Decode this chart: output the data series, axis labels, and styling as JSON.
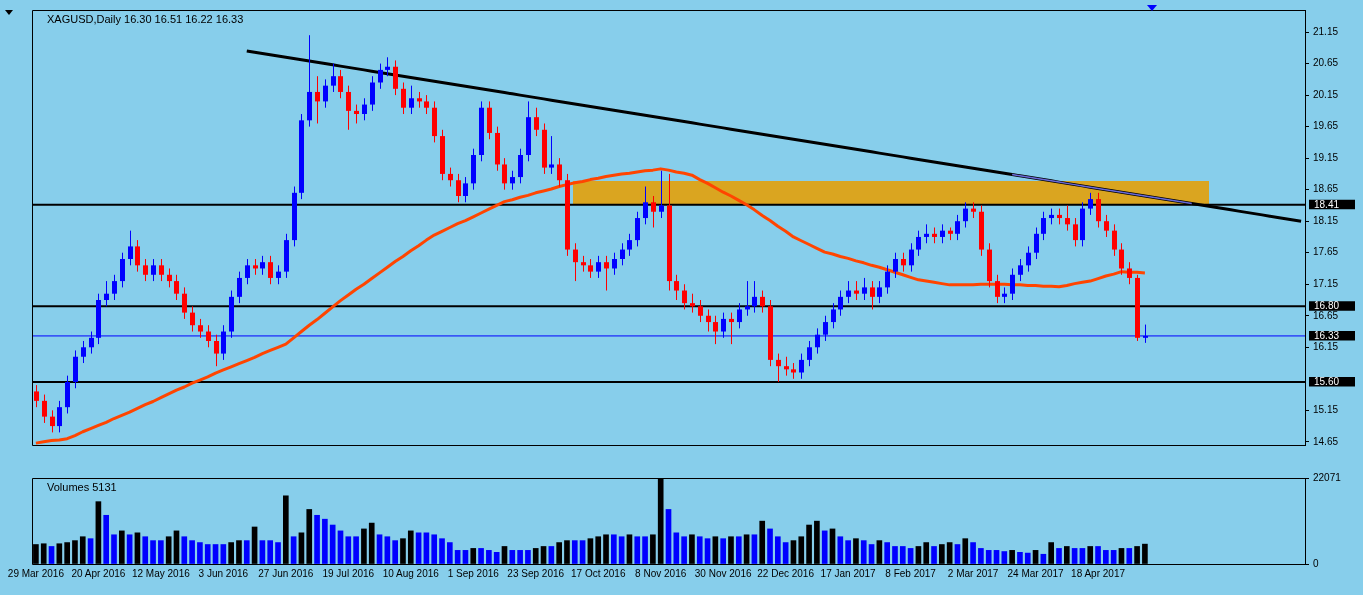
{
  "chart_data": [
    {
      "type": "candlestick",
      "title": "XAGUSD,Daily 16.30 16.51 16.22 16.33",
      "tick_labels": "y",
      "categories": [
        null,
        null,
        null,
        null,
        null,
        null,
        null,
        null,
        null,
        null,
        null,
        null,
        null,
        null,
        null,
        null,
        null,
        null,
        null,
        null,
        null,
        null,
        null,
        null,
        null,
        null,
        null,
        null,
        null,
        null,
        null,
        null,
        null,
        null,
        null,
        null,
        null,
        null,
        null,
        null,
        null,
        null,
        null,
        null,
        null,
        null,
        null,
        null,
        null,
        null,
        null,
        null,
        null,
        null,
        null,
        null,
        null,
        null,
        null,
        null,
        null,
        null,
        null,
        null,
        null,
        null,
        null,
        null,
        null,
        null,
        null,
        null,
        null,
        null,
        null,
        null,
        null,
        null,
        null,
        null,
        null,
        null,
        null,
        null,
        null,
        null,
        null,
        null,
        null,
        null,
        null,
        null,
        null,
        null,
        null,
        null,
        null,
        null,
        null,
        null,
        null,
        null,
        null,
        null,
        null,
        null,
        null,
        null,
        null,
        null,
        null,
        null,
        null,
        null,
        null,
        null,
        null,
        null,
        null,
        null,
        null,
        null,
        null,
        null,
        null,
        null,
        null,
        null,
        null,
        null,
        null,
        null,
        null,
        null,
        null,
        null,
        null,
        null,
        null,
        null,
        null,
        null,
        null,
        null,
        null,
        null,
        null,
        null,
        null,
        null,
        null,
        null,
        null,
        null,
        null,
        null,
        null,
        null,
        null,
        null,
        null,
        null,
        null
      ],
      "ylim": [
        14.6,
        21.5
      ],
      "yticks": [
        21.15,
        20.65,
        20.15,
        19.65,
        19.15,
        18.65,
        18.15,
        17.65,
        17.15,
        16.65,
        16.15,
        15.15,
        14.65
      ],
      "ohlc": [
        [
          15.45,
          15.55,
          15.2,
          15.3
        ],
        [
          15.3,
          15.4,
          14.95,
          15.05
        ],
        [
          15.05,
          15.15,
          14.8,
          14.9
        ],
        [
          14.9,
          15.3,
          14.8,
          15.2
        ],
        [
          15.2,
          15.7,
          15.1,
          15.6
        ],
        [
          15.6,
          16.1,
          15.5,
          16.0
        ],
        [
          16.0,
          16.25,
          15.9,
          16.15
        ],
        [
          16.15,
          16.4,
          16.05,
          16.3
        ],
        [
          16.3,
          17.0,
          16.2,
          16.9
        ],
        [
          16.9,
          17.2,
          16.8,
          17.0
        ],
        [
          17.0,
          17.3,
          16.9,
          17.2
        ],
        [
          17.2,
          17.65,
          17.1,
          17.55
        ],
        [
          17.55,
          18.0,
          17.45,
          17.75
        ],
        [
          17.75,
          17.85,
          17.35,
          17.45
        ],
        [
          17.45,
          17.55,
          17.2,
          17.3
        ],
        [
          17.3,
          17.55,
          17.2,
          17.45
        ],
        [
          17.45,
          17.55,
          17.2,
          17.3
        ],
        [
          17.3,
          17.4,
          17.1,
          17.2
        ],
        [
          17.2,
          17.3,
          16.9,
          17.0
        ],
        [
          17.0,
          17.1,
          16.6,
          16.7
        ],
        [
          16.7,
          16.8,
          16.4,
          16.5
        ],
        [
          16.5,
          16.6,
          16.3,
          16.4
        ],
        [
          16.4,
          16.5,
          16.15,
          16.25
        ],
        [
          16.25,
          16.35,
          15.85,
          16.05
        ],
        [
          16.05,
          16.5,
          15.95,
          16.4
        ],
        [
          16.4,
          17.05,
          16.3,
          16.95
        ],
        [
          16.95,
          17.35,
          16.85,
          17.25
        ],
        [
          17.25,
          17.55,
          17.15,
          17.45
        ],
        [
          17.45,
          17.55,
          17.3,
          17.4
        ],
        [
          17.4,
          17.6,
          17.3,
          17.5
        ],
        [
          17.5,
          17.6,
          17.15,
          17.25
        ],
        [
          17.25,
          17.45,
          17.15,
          17.35
        ],
        [
          17.35,
          17.95,
          17.25,
          17.85
        ],
        [
          17.85,
          18.7,
          17.75,
          18.6
        ],
        [
          18.6,
          19.85,
          18.5,
          19.75
        ],
        [
          19.75,
          21.1,
          19.65,
          20.2
        ],
        [
          20.2,
          20.45,
          19.7,
          20.05
        ],
        [
          20.05,
          20.4,
          19.95,
          20.3
        ],
        [
          20.3,
          20.65,
          20.2,
          20.45
        ],
        [
          20.45,
          20.55,
          20.1,
          20.2
        ],
        [
          20.2,
          20.3,
          19.6,
          19.9
        ],
        [
          19.9,
          20.0,
          19.7,
          19.85
        ],
        [
          19.85,
          20.1,
          19.75,
          20.0
        ],
        [
          20.0,
          20.45,
          19.9,
          20.35
        ],
        [
          20.35,
          20.65,
          20.25,
          20.55
        ],
        [
          20.55,
          20.75,
          20.45,
          20.6
        ],
        [
          20.6,
          20.7,
          20.15,
          20.25
        ],
        [
          20.25,
          20.35,
          19.85,
          19.95
        ],
        [
          19.95,
          20.3,
          19.85,
          20.1
        ],
        [
          20.1,
          20.2,
          19.95,
          20.05
        ],
        [
          20.05,
          20.15,
          19.85,
          19.95
        ],
        [
          19.95,
          20.05,
          19.4,
          19.5
        ],
        [
          19.5,
          19.6,
          18.8,
          18.9
        ],
        [
          18.9,
          19.0,
          18.7,
          18.8
        ],
        [
          18.8,
          18.9,
          18.45,
          18.55
        ],
        [
          18.55,
          18.85,
          18.45,
          18.75
        ],
        [
          18.75,
          19.3,
          18.65,
          19.2
        ],
        [
          19.2,
          20.05,
          19.1,
          19.95
        ],
        [
          19.95,
          20.05,
          19.45,
          19.55
        ],
        [
          19.55,
          19.65,
          18.95,
          19.05
        ],
        [
          19.05,
          19.15,
          18.65,
          18.75
        ],
        [
          18.75,
          18.95,
          18.65,
          18.85
        ],
        [
          18.85,
          19.3,
          18.75,
          19.2
        ],
        [
          19.2,
          20.05,
          19.1,
          19.8
        ],
        [
          19.8,
          19.95,
          19.5,
          19.6
        ],
        [
          19.6,
          19.7,
          18.9,
          19.0
        ],
        [
          19.0,
          19.5,
          18.9,
          19.05
        ],
        [
          19.05,
          19.15,
          18.7,
          18.8
        ],
        [
          18.8,
          18.9,
          17.6,
          17.7
        ],
        [
          17.7,
          17.8,
          17.2,
          17.5
        ],
        [
          17.5,
          17.6,
          17.35,
          17.45
        ],
        [
          17.45,
          17.55,
          17.25,
          17.35
        ],
        [
          17.35,
          17.6,
          17.25,
          17.5
        ],
        [
          17.5,
          17.6,
          17.05,
          17.4
        ],
        [
          17.4,
          17.65,
          17.3,
          17.55
        ],
        [
          17.55,
          17.8,
          17.45,
          17.7
        ],
        [
          17.7,
          17.95,
          17.6,
          17.85
        ],
        [
          17.85,
          18.3,
          17.75,
          18.2
        ],
        [
          18.2,
          18.7,
          18.1,
          18.45
        ],
        [
          18.45,
          18.55,
          18.05,
          18.3
        ],
        [
          18.3,
          18.95,
          18.2,
          18.4
        ],
        [
          18.4,
          18.9,
          17.05,
          17.2
        ],
        [
          17.2,
          17.3,
          16.9,
          17.05
        ],
        [
          17.05,
          17.15,
          16.75,
          16.85
        ],
        [
          16.85,
          17.0,
          16.7,
          16.8
        ],
        [
          16.8,
          16.9,
          16.55,
          16.65
        ],
        [
          16.65,
          16.75,
          16.4,
          16.55
        ],
        [
          16.55,
          16.65,
          16.2,
          16.4
        ],
        [
          16.4,
          16.7,
          16.3,
          16.6
        ],
        [
          16.6,
          16.7,
          16.2,
          16.55
        ],
        [
          16.55,
          16.85,
          16.45,
          16.75
        ],
        [
          16.75,
          17.2,
          16.65,
          16.8
        ],
        [
          16.8,
          17.2,
          16.7,
          16.95
        ],
        [
          16.95,
          17.05,
          16.7,
          16.8
        ],
        [
          16.8,
          16.9,
          15.85,
          15.95
        ],
        [
          15.95,
          16.05,
          15.6,
          15.85
        ],
        [
          15.85,
          16.0,
          15.7,
          15.8
        ],
        [
          15.8,
          15.9,
          15.65,
          15.75
        ],
        [
          15.75,
          16.05,
          15.65,
          15.95
        ],
        [
          15.95,
          16.25,
          15.85,
          16.15
        ],
        [
          16.15,
          16.45,
          16.05,
          16.35
        ],
        [
          16.35,
          16.65,
          16.25,
          16.55
        ],
        [
          16.55,
          16.85,
          16.45,
          16.75
        ],
        [
          16.75,
          17.05,
          16.65,
          16.95
        ],
        [
          16.95,
          17.2,
          16.85,
          17.05
        ],
        [
          17.05,
          17.2,
          16.9,
          17.0
        ],
        [
          17.0,
          17.25,
          16.9,
          17.1
        ],
        [
          17.1,
          17.2,
          16.75,
          16.95
        ],
        [
          16.95,
          17.2,
          16.85,
          17.1
        ],
        [
          17.1,
          17.45,
          17.0,
          17.35
        ],
        [
          17.35,
          17.65,
          17.25,
          17.55
        ],
        [
          17.55,
          17.65,
          17.35,
          17.45
        ],
        [
          17.45,
          17.8,
          17.35,
          17.7
        ],
        [
          17.7,
          18.0,
          17.6,
          17.9
        ],
        [
          17.9,
          18.1,
          17.8,
          17.95
        ],
        [
          17.95,
          18.05,
          17.8,
          17.9
        ],
        [
          17.9,
          18.1,
          17.8,
          18.0
        ],
        [
          18.0,
          18.05,
          17.85,
          17.95
        ],
        [
          17.95,
          18.25,
          17.85,
          18.15
        ],
        [
          18.15,
          18.45,
          18.05,
          18.35
        ],
        [
          18.35,
          18.45,
          18.2,
          18.3
        ],
        [
          18.3,
          18.4,
          17.6,
          17.7
        ],
        [
          17.7,
          17.8,
          17.1,
          17.2
        ],
        [
          17.2,
          17.3,
          16.85,
          16.95
        ],
        [
          16.95,
          17.1,
          16.85,
          17.0
        ],
        [
          17.0,
          17.4,
          16.9,
          17.3
        ],
        [
          17.3,
          17.55,
          17.2,
          17.45
        ],
        [
          17.45,
          17.75,
          17.35,
          17.65
        ],
        [
          17.65,
          18.05,
          17.55,
          17.95
        ],
        [
          17.95,
          18.3,
          17.85,
          18.2
        ],
        [
          18.2,
          18.35,
          18.1,
          18.25
        ],
        [
          18.25,
          18.35,
          18.1,
          18.2
        ],
        [
          18.2,
          18.4,
          18.0,
          18.1
        ],
        [
          18.1,
          18.2,
          17.75,
          17.85
        ],
        [
          17.85,
          18.45,
          17.75,
          18.35
        ],
        [
          18.35,
          18.6,
          18.25,
          18.5
        ],
        [
          18.5,
          18.6,
          18.05,
          18.15
        ],
        [
          18.15,
          18.25,
          17.9,
          18.0
        ],
        [
          18.0,
          18.1,
          17.6,
          17.7
        ],
        [
          17.7,
          17.8,
          17.3,
          17.4
        ],
        [
          17.4,
          17.5,
          17.15,
          17.25
        ],
        [
          17.25,
          17.3,
          16.25,
          16.3
        ],
        [
          16.3,
          16.51,
          16.22,
          16.33
        ],
        null,
        null,
        null,
        null,
        null,
        null,
        null,
        null,
        null,
        null,
        null,
        null,
        null,
        null,
        null,
        null,
        null,
        null,
        null,
        null
      ],
      "colors": [
        "#ff0000",
        "#ff0000",
        "#ff0000",
        "#0000ff",
        "#0000ff",
        "#0000ff",
        "#0000ff",
        "#0000ff",
        "#0000ff",
        "#0000ff",
        "#0000ff",
        "#0000ff",
        "#0000ff",
        "#ff0000",
        "#ff0000",
        "#0000ff",
        "#ff0000",
        "#ff0000",
        "#ff0000",
        "#ff0000",
        "#ff0000",
        "#ff0000",
        "#ff0000",
        "#ff0000",
        "#0000ff",
        "#0000ff",
        "#0000ff",
        "#0000ff",
        "#ff0000",
        "#0000ff",
        "#ff0000",
        "#0000ff",
        "#0000ff",
        "#0000ff",
        "#0000ff",
        "#0000ff",
        "#ff0000",
        "#0000ff",
        "#0000ff",
        "#ff0000",
        "#ff0000",
        "#ff0000",
        "#0000ff",
        "#0000ff",
        "#0000ff",
        "#0000ff",
        "#ff0000",
        "#ff0000",
        "#0000ff",
        "#ff0000",
        "#ff0000",
        "#ff0000",
        "#ff0000",
        "#ff0000",
        "#ff0000",
        "#0000ff",
        "#0000ff",
        "#0000ff",
        "#ff0000",
        "#ff0000",
        "#ff0000",
        "#0000ff",
        "#0000ff",
        "#0000ff",
        "#ff0000",
        "#ff0000",
        "#0000ff",
        "#ff0000",
        "#ff0000",
        "#ff0000",
        "#ff0000",
        "#ff0000",
        "#0000ff",
        "#ff0000",
        "#0000ff",
        "#0000ff",
        "#0000ff",
        "#0000ff",
        "#0000ff",
        "#ff0000",
        "#0000ff",
        "#ff0000",
        "#ff0000",
        "#ff0000",
        "#ff0000",
        "#ff0000",
        "#ff0000",
        "#ff0000",
        "#0000ff",
        "#ff0000",
        "#0000ff",
        "#0000ff",
        "#0000ff",
        "#ff0000",
        "#ff0000",
        "#ff0000",
        "#ff0000",
        "#ff0000",
        "#0000ff",
        "#0000ff",
        "#0000ff",
        "#0000ff",
        "#0000ff",
        "#0000ff",
        "#0000ff",
        "#ff0000",
        "#0000ff",
        "#ff0000",
        "#0000ff",
        "#0000ff",
        "#0000ff",
        "#ff0000",
        "#0000ff",
        "#0000ff",
        "#0000ff",
        "#ff0000",
        "#0000ff",
        "#ff0000",
        "#0000ff",
        "#0000ff",
        "#ff0000",
        "#ff0000",
        "#ff0000",
        "#ff0000",
        "#0000ff",
        "#0000ff",
        "#0000ff",
        "#0000ff",
        "#0000ff",
        "#0000ff",
        "#0000ff",
        "#ff0000",
        "#ff0000",
        "#ff0000",
        "#0000ff",
        "#0000ff",
        "#ff0000",
        "#ff0000",
        "#ff0000",
        "#ff0000",
        "#ff0000",
        "#ff0000",
        "#0000ff",
        null,
        null,
        null,
        null,
        null,
        null,
        null,
        null,
        null,
        null,
        null,
        null,
        null,
        null,
        null,
        null,
        null,
        null,
        null,
        null
      ],
      "series": [
        {
          "type": "line",
          "color": "#ff4500",
          "values": [
            14.63,
            14.65,
            14.67,
            14.68,
            14.7,
            14.75,
            14.81,
            14.86,
            14.91,
            14.96,
            15.02,
            15.07,
            15.12,
            15.18,
            15.24,
            15.29,
            15.35,
            15.41,
            15.47,
            15.52,
            15.58,
            15.63,
            15.68,
            15.74,
            15.79,
            15.84,
            15.89,
            15.94,
            15.99,
            16.05,
            16.1,
            16.15,
            16.2,
            16.3,
            16.4,
            16.5,
            16.59,
            16.69,
            16.79,
            16.89,
            16.98,
            17.07,
            17.15,
            17.24,
            17.33,
            17.42,
            17.51,
            17.59,
            17.68,
            17.76,
            17.85,
            17.93,
            17.99,
            18.05,
            18.11,
            18.16,
            18.22,
            18.28,
            18.34,
            18.4,
            18.46,
            18.49,
            18.53,
            18.56,
            18.6,
            18.63,
            18.66,
            18.7,
            18.73,
            18.76,
            18.78,
            18.81,
            18.83,
            18.86,
            18.88,
            18.9,
            18.91,
            18.93,
            18.95,
            18.96,
            18.98,
            18.96,
            18.93,
            18.91,
            18.88,
            18.81,
            18.75,
            18.68,
            18.61,
            18.55,
            18.48,
            18.41,
            18.33,
            18.24,
            18.16,
            18.07,
            17.99,
            17.9,
            17.84,
            17.78,
            17.72,
            17.66,
            17.63,
            17.59,
            17.56,
            17.52,
            17.49,
            17.45,
            17.42,
            17.38,
            17.34,
            17.3,
            17.26,
            17.22,
            17.2,
            17.18,
            17.16,
            17.14,
            17.14,
            17.14,
            17.14,
            17.15,
            17.15,
            17.15,
            17.15,
            17.14,
            17.14,
            17.13,
            17.13,
            17.12,
            17.12,
            17.11,
            17.13,
            17.16,
            17.18,
            17.2,
            17.24,
            17.28,
            17.31,
            17.35,
            17.34,
            17.34,
            17.33,
            null,
            null,
            null,
            null,
            null,
            null,
            null,
            null,
            null,
            null,
            null,
            null,
            null,
            null,
            null,
            null,
            null,
            null,
            null,
            null
          ]
        },
        {
          "type": "line",
          "color": "#000000",
          "values": [
            null,
            null,
            null,
            null,
            null,
            null,
            null,
            null,
            null,
            null,
            null,
            null,
            null,
            null,
            null,
            null,
            null,
            null,
            null,
            null,
            null,
            null,
            null,
            null,
            null,
            null,
            null,
            20.85,
            20.83,
            20.81,
            20.79,
            20.77,
            20.75,
            20.73,
            20.71,
            20.69,
            20.67,
            20.65,
            20.63,
            20.61,
            20.59,
            20.57,
            20.55,
            20.53,
            20.51,
            20.49,
            20.47,
            20.45,
            20.43,
            20.41,
            20.39,
            20.37,
            20.35,
            20.33,
            20.31,
            20.29,
            20.27,
            20.25,
            20.23,
            20.21,
            20.19,
            20.17,
            20.15,
            20.13,
            20.11,
            20.09,
            20.07,
            20.05,
            20.03,
            20.01,
            19.99,
            19.97,
            19.95,
            19.93,
            19.91,
            19.89,
            19.87,
            19.85,
            19.83,
            19.81,
            19.79,
            19.77,
            19.75,
            19.73,
            19.71,
            19.69,
            19.67,
            19.65,
            19.63,
            19.61,
            19.59,
            19.57,
            19.55,
            19.53,
            19.51,
            19.49,
            19.47,
            19.45,
            19.43,
            19.41,
            19.39,
            19.37,
            19.35,
            19.33,
            19.31,
            19.29,
            19.27,
            19.25,
            19.23,
            19.21,
            19.19,
            19.17,
            19.15,
            19.13,
            19.11,
            19.09,
            19.07,
            19.05,
            19.03,
            19.01,
            18.99,
            18.97,
            18.95,
            18.93,
            18.91,
            18.89,
            18.87,
            18.85,
            18.83,
            18.81,
            18.79,
            18.77,
            18.75,
            18.73,
            18.71,
            18.69,
            18.67,
            18.65,
            18.63,
            18.61,
            18.59,
            18.57,
            18.55,
            18.53,
            18.51,
            18.49,
            18.47,
            18.45,
            18.43,
            18.41,
            18.39,
            18.37,
            18.35,
            18.33,
            18.31,
            18.29,
            18.27,
            18.25,
            18.23,
            18.21,
            18.19,
            18.17,
            18.15
          ]
        },
        {
          "type": "line",
          "color": "#6a6ad8",
          "values": [
            null,
            null,
            null,
            null,
            null,
            null,
            null,
            null,
            null,
            null,
            null,
            null,
            null,
            null,
            null,
            null,
            null,
            null,
            null,
            null,
            null,
            null,
            null,
            null,
            null,
            null,
            null,
            null,
            null,
            null,
            null,
            null,
            null,
            null,
            null,
            null,
            null,
            null,
            null,
            null,
            null,
            null,
            null,
            null,
            null,
            null,
            null,
            null,
            null,
            null,
            null,
            null,
            null,
            null,
            null,
            null,
            null,
            null,
            null,
            null,
            null,
            null,
            null,
            null,
            null,
            null,
            null,
            null,
            null,
            null,
            null,
            null,
            null,
            null,
            null,
            null,
            null,
            null,
            null,
            null,
            null,
            null,
            null,
            null,
            null,
            null,
            null,
            null,
            null,
            null,
            null,
            null,
            null,
            null,
            null,
            null,
            null,
            null,
            null,
            null,
            null,
            null,
            null,
            null,
            null,
            null,
            null,
            null,
            null,
            null,
            null,
            null,
            null,
            null,
            null,
            null,
            null,
            null,
            null,
            null,
            null,
            null,
            null,
            null,
            null,
            18.89,
            18.87,
            18.85,
            18.83,
            18.81,
            18.79,
            18.77,
            18.75,
            18.73,
            18.71,
            18.69,
            18.67,
            18.65,
            18.63,
            18.61,
            18.59,
            18.57,
            18.55,
            18.53,
            18.51,
            18.49,
            18.47,
            18.45,
            18.43,
            null,
            null,
            null,
            null,
            null,
            null,
            null,
            null,
            null,
            null,
            null,
            null,
            null,
            null
          ]
        }
      ],
      "ref_lines": [
        {
          "axis": "y",
          "value": 18.41,
          "label": "18.41",
          "color": "#000000"
        },
        {
          "axis": "y",
          "value": 16.8,
          "label": "16.80",
          "color": "#000000"
        },
        {
          "axis": "y",
          "value": 16.33,
          "label": "16.33",
          "color": "#0000ff"
        },
        {
          "axis": "y",
          "value": 15.6,
          "label": "15.60",
          "color": "#000000"
        }
      ]
    },
    {
      "type": "bar",
      "title": "Volumes 5131",
      "ylim": [
        0,
        22071
      ],
      "yticks": [
        0,
        22071
      ],
      "categories": [
        "29 Mar 2016",
        null,
        null,
        null,
        null,
        null,
        null,
        null,
        "20 Apr 2016",
        null,
        null,
        null,
        null,
        null,
        null,
        null,
        "12 May 2016",
        null,
        null,
        null,
        null,
        null,
        null,
        null,
        "3 Jun 2016",
        null,
        null,
        null,
        null,
        null,
        null,
        null,
        "27 Jun 2016",
        null,
        null,
        null,
        null,
        null,
        null,
        null,
        "19 Jul 2016",
        null,
        null,
        null,
        null,
        null,
        null,
        null,
        "10 Aug 2016",
        null,
        null,
        null,
        null,
        null,
        null,
        null,
        "1 Sep 2016",
        null,
        null,
        null,
        null,
        null,
        null,
        null,
        "23 Sep 2016",
        null,
        null,
        null,
        null,
        null,
        null,
        null,
        "17 Oct 2016",
        null,
        null,
        null,
        null,
        null,
        null,
        null,
        "8 Nov 2016",
        null,
        null,
        null,
        null,
        null,
        null,
        null,
        "30 Nov 2016",
        null,
        null,
        null,
        null,
        null,
        null,
        null,
        "22 Dec 2016",
        null,
        null,
        null,
        null,
        null,
        null,
        null,
        "17 Jan 2017",
        null,
        null,
        null,
        null,
        null,
        null,
        null,
        "8 Feb 2017",
        null,
        null,
        null,
        null,
        null,
        null,
        null,
        "2 Mar 2017",
        null,
        null,
        null,
        null,
        null,
        null,
        null,
        "24 Mar 2017",
        null,
        null,
        null,
        null,
        null,
        null,
        null,
        "18 Apr 2017",
        null,
        null,
        null,
        null,
        null,
        null,
        null,
        null,
        null,
        null,
        null,
        null,
        null,
        null,
        null,
        null,
        null,
        null,
        null,
        null,
        null,
        null,
        null,
        null,
        null,
        null
      ],
      "values": [
        5000,
        5200,
        4500,
        5200,
        5500,
        6000,
        7000,
        6500,
        16000,
        12500,
        7500,
        8500,
        7500,
        8000,
        7000,
        6000,
        6000,
        7000,
        8500,
        7000,
        6000,
        5500,
        5000,
        5000,
        5000,
        5500,
        6000,
        6000,
        9500,
        6000,
        6000,
        5500,
        17500,
        7000,
        8000,
        14000,
        12500,
        11500,
        10000,
        8500,
        7000,
        7000,
        9000,
        10500,
        7500,
        7000,
        6000,
        6500,
        8500,
        8000,
        8000,
        7500,
        6500,
        5500,
        3500,
        3500,
        4000,
        4000,
        3500,
        3000,
        4500,
        3500,
        3500,
        3500,
        4000,
        4500,
        4500,
        5500,
        6000,
        6000,
        6000,
        6500,
        7000,
        7500,
        7500,
        7000,
        7500,
        7000,
        7000,
        7500,
        22000,
        14000,
        8000,
        7000,
        7500,
        7000,
        6500,
        7000,
        6500,
        7000,
        7000,
        7500,
        7500,
        11000,
        9000,
        7000,
        5500,
        6000,
        7000,
        10000,
        11000,
        8500,
        9000,
        7000,
        6000,
        6500,
        6000,
        5000,
        6000,
        5500,
        4500,
        4500,
        4000,
        4500,
        5500,
        4500,
        5000,
        5500,
        5000,
        6500,
        5500,
        4000,
        3500,
        3500,
        3200,
        3500,
        3000,
        2800,
        3500,
        2500,
        5500,
        4000,
        4500,
        4000,
        4000,
        4500,
        4500,
        3500,
        3500,
        4000,
        4000,
        4500,
        5100,
        null,
        null,
        null,
        null,
        null,
        null,
        null,
        null,
        null,
        null,
        null,
        null,
        null,
        null,
        null,
        null,
        null,
        null,
        null,
        null
      ],
      "colors": [
        "#000000",
        "#000000",
        "#0000ff",
        "#000000",
        "#000000",
        "#000000",
        "#000000",
        "#0000ff",
        "#000000",
        "#0000ff",
        "#0000ff",
        "#000000",
        "#0000ff",
        "#000000",
        "#0000ff",
        "#0000ff",
        "#0000ff",
        "#000000",
        "#000000",
        "#0000ff",
        "#0000ff",
        "#0000ff",
        "#0000ff",
        "#0000ff",
        "#0000ff",
        "#000000",
        "#000000",
        "#0000ff",
        "#000000",
        "#0000ff",
        "#0000ff",
        "#0000ff",
        "#000000",
        "#0000ff",
        "#000000",
        "#000000",
        "#0000ff",
        "#0000ff",
        "#0000ff",
        "#0000ff",
        "#0000ff",
        "#0000ff",
        "#000000",
        "#000000",
        "#0000ff",
        "#0000ff",
        "#0000ff",
        "#000000",
        "#000000",
        "#0000ff",
        "#0000ff",
        "#0000ff",
        "#0000ff",
        "#0000ff",
        "#0000ff",
        "#0000ff",
        "#000000",
        "#0000ff",
        "#0000ff",
        "#0000ff",
        "#000000",
        "#0000ff",
        "#0000ff",
        "#0000ff",
        "#000000",
        "#000000",
        "#0000ff",
        "#000000",
        "#000000",
        "#0000ff",
        "#0000ff",
        "#000000",
        "#000000",
        "#000000",
        "#0000ff",
        "#0000ff",
        "#000000",
        "#0000ff",
        "#0000ff",
        "#000000",
        "#000000",
        "#0000ff",
        "#0000ff",
        "#0000ff",
        "#000000",
        "#0000ff",
        "#0000ff",
        "#000000",
        "#0000ff",
        "#000000",
        "#0000ff",
        "#000000",
        "#0000ff",
        "#000000",
        "#0000ff",
        "#0000ff",
        "#0000ff",
        "#000000",
        "#000000",
        "#000000",
        "#000000",
        "#0000ff",
        "#000000",
        "#0000ff",
        "#0000ff",
        "#000000",
        "#0000ff",
        "#0000ff",
        "#000000",
        "#0000ff",
        "#0000ff",
        "#0000ff",
        "#0000ff",
        "#000000",
        "#000000",
        "#0000ff",
        "#000000",
        "#000000",
        "#0000ff",
        "#000000",
        "#0000ff",
        "#0000ff",
        "#0000ff",
        "#0000ff",
        "#0000ff",
        "#000000",
        "#0000ff",
        "#0000ff",
        "#000000",
        "#0000ff",
        "#000000",
        "#0000ff",
        "#000000",
        "#0000ff",
        "#0000ff",
        "#000000",
        "#0000ff",
        "#0000ff",
        "#0000ff",
        "#000000",
        "#0000ff",
        "#000000",
        "#000000",
        null,
        null,
        null,
        null,
        null,
        null,
        null,
        null,
        null,
        null,
        null,
        null,
        null,
        null,
        null,
        null,
        null,
        null,
        null,
        null
      ]
    }
  ]
}
